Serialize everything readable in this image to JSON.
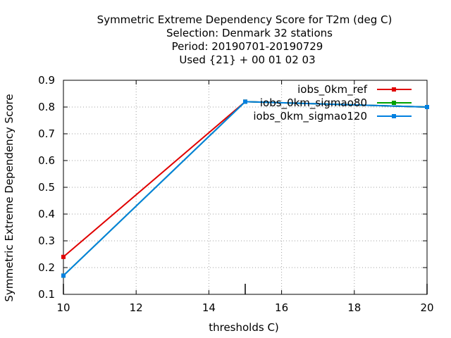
{
  "chart_data": {
    "type": "line",
    "title_lines": [
      "Symmetric Extreme Dependency Score  for T2m (deg C)",
      "Selection: Denmark     32 stations",
      "Period: 20190701-20190729",
      "Used {21} + 00 01 02 03"
    ],
    "xlabel": "thresholds C)",
    "ylabel": "Symmetric Extreme Dependency Score",
    "xlim": [
      10,
      20
    ],
    "ylim": [
      0.1,
      0.9
    ],
    "x_ticks": [
      10,
      12,
      14,
      16,
      18,
      20
    ],
    "x_tick_labels": [
      "10",
      "12",
      "14",
      "16",
      "18",
      "20"
    ],
    "y_ticks": [
      0.1,
      0.2,
      0.3,
      0.4,
      0.5,
      0.6,
      0.7,
      0.8,
      0.9
    ],
    "y_tick_labels": [
      "0.1",
      "0.2",
      "0.3",
      "0.4",
      "0.5",
      "0.6",
      "0.7",
      "0.8",
      "0.9"
    ],
    "extra_x_ticks": [
      15
    ],
    "grid": true,
    "legend_position": "top-right",
    "series": [
      {
        "name": "iobs_0km_ref",
        "color": "#e00000",
        "x": [
          10,
          15,
          20
        ],
        "y": [
          0.24,
          0.82,
          0.8
        ]
      },
      {
        "name": "iobs_0km_sigmao80",
        "color": "#00a000",
        "x": [
          10,
          15,
          20
        ],
        "y": [
          0.17,
          0.82,
          0.8
        ]
      },
      {
        "name": "iobs_0km_sigmao120",
        "color": "#0080e0",
        "x": [
          10,
          15,
          20
        ],
        "y": [
          0.17,
          0.82,
          0.8
        ]
      }
    ]
  }
}
